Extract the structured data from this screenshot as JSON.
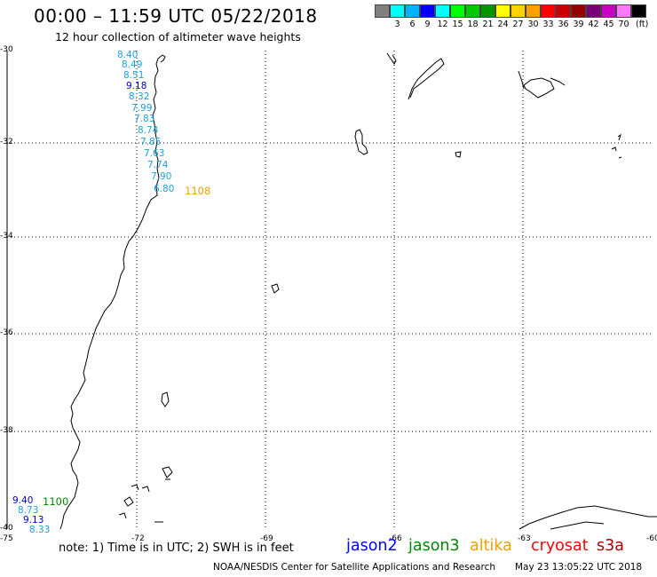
{
  "header": {
    "title": "00:00 – 11:59 UTC 05/22/2018",
    "subtitle": "12 hour collection of altimeter wave heights"
  },
  "scale": {
    "unit_label": "(ft)",
    "colors": [
      "#808080",
      "#00ffff",
      "#00b4ff",
      "#0000ff",
      "#00ffff",
      "#00ff00",
      "#00c800",
      "#009600",
      "#ffff00",
      "#ffd200",
      "#ffa000",
      "#ff0000",
      "#c80000",
      "#960000",
      "#780078",
      "#c800c8",
      "#ff78ff",
      "#000000"
    ],
    "ticks": [
      "3",
      "6",
      "9",
      "12",
      "15",
      "18",
      "21",
      "24",
      "27",
      "30",
      "33",
      "36",
      "39",
      "42",
      "45",
      "70"
    ]
  },
  "axes": {
    "lat_labels": [
      "-30",
      "-32",
      "-34",
      "-36",
      "-38",
      "-40"
    ],
    "lon_labels": [
      "-75",
      "-72",
      "-69",
      "-66",
      "-63",
      "-60"
    ]
  },
  "tracks": {
    "north": {
      "pass_id": "1108",
      "pass_color": "#f0a000",
      "values": [
        "8.40",
        "8.49",
        "8.51",
        "9.18",
        "8.32",
        "7.99",
        "7.83",
        "8.74",
        "7.85",
        "7.63",
        "7.74",
        "7.90",
        "6.80"
      ]
    },
    "south": {
      "pass_id": "1100",
      "pass_color": "#008800",
      "values": [
        "9.40",
        "8.73",
        "9.13",
        "8.33"
      ]
    }
  },
  "footer": {
    "note": "note: 1) Time is in UTC; 2) SWH is in feet",
    "satellites": [
      {
        "name": "jason2",
        "color": "#0000ff"
      },
      {
        "name": "jason3",
        "color": "#008800"
      },
      {
        "name": "altika",
        "color": "#f0a000"
      },
      {
        "name": "cryosat",
        "color": "#ff0000"
      },
      {
        "name": "s3a",
        "color": "#aa0000"
      }
    ],
    "credit": "NOAA/NESDIS Center for Satellite Applications and Research",
    "issued": "May 23 13:05:22 UTC 2018"
  }
}
